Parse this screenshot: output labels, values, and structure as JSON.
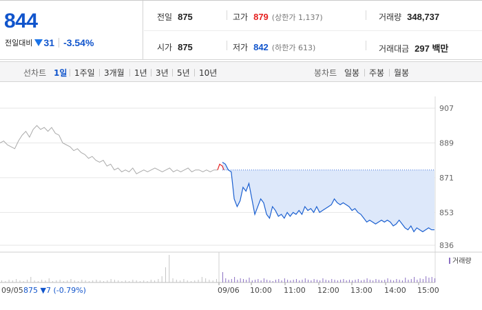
{
  "quote": {
    "price": "844",
    "change_label": "전일대비",
    "change_value": "31",
    "change_pct": "-3.54%",
    "change_direction_icon": "triangle-down-icon",
    "colors": {
      "down": "#1155cc",
      "up": "#e5201f"
    }
  },
  "stats": {
    "prev_close": {
      "label": "전일",
      "value": "875"
    },
    "high": {
      "label": "고가",
      "value": "879",
      "sub": "(상한가 1,137)"
    },
    "volume": {
      "label": "거래량",
      "value": "348,737"
    },
    "open": {
      "label": "시가",
      "value": "875"
    },
    "low": {
      "label": "저가",
      "value": "842",
      "sub": "(하한가 613)"
    },
    "trade_value": {
      "label": "거래대금",
      "value": "297 백만"
    }
  },
  "line_chart_bar": {
    "title": "선차트",
    "options": [
      "1일",
      "1주일",
      "3개월",
      "1년",
      "3년",
      "5년",
      "10년"
    ],
    "selected": "1일"
  },
  "candle_chart_bar": {
    "title": "봉차트",
    "options": [
      "일봉",
      "주봉",
      "월봉"
    ]
  },
  "chart_data": {
    "type": "line",
    "y_ticks": [
      "907",
      "889",
      "871",
      "853",
      "836"
    ],
    "ylim": [
      836,
      907
    ],
    "x_labels": [
      "09/06",
      "10:00",
      "11:00",
      "12:00",
      "13:00",
      "14:00",
      "15:00"
    ],
    "prev_day": {
      "date_label": "09/05",
      "close_text": "875 ▼7 (-0.79%)",
      "color": "#aaaaaa",
      "values": [
        889,
        890,
        888,
        887,
        886,
        890,
        893,
        895,
        892,
        896,
        898,
        896,
        897,
        895,
        897,
        894,
        893,
        889,
        888,
        887,
        885,
        886,
        884,
        883,
        881,
        882,
        880,
        879,
        880,
        877,
        878,
        875,
        876,
        874,
        875,
        874,
        876,
        873,
        874,
        875,
        874,
        875,
        876,
        875,
        874,
        875,
        876,
        874,
        875,
        874,
        875,
        876,
        874,
        875,
        875,
        874,
        875,
        874,
        875,
        875
      ]
    },
    "series": [
      {
        "values": [
          879,
          878,
          875,
          874,
          860,
          856,
          859,
          866,
          864,
          868,
          860,
          852,
          856,
          860,
          858,
          852,
          850,
          856,
          854,
          851,
          852,
          850,
          853,
          851,
          853,
          852,
          854,
          852,
          856,
          854,
          855,
          853,
          856,
          853,
          854,
          855,
          856,
          857,
          860,
          858,
          857,
          858,
          857,
          856,
          854,
          855,
          853,
          852,
          850,
          848,
          849,
          848,
          847,
          848,
          849,
          848,
          849,
          848,
          846,
          847,
          849,
          847,
          845,
          844,
          846,
          843,
          845,
          844,
          843,
          844,
          845,
          844,
          844
        ],
        "color": "#1a5fd0",
        "fill": "#dde8fa"
      }
    ],
    "reference_line": 875,
    "volume": {
      "legend": "거래량",
      "prev_day_values": [
        3,
        2,
        4,
        3,
        5,
        3,
        2,
        4,
        8,
        3,
        2,
        4,
        3,
        6,
        2,
        3,
        4,
        2,
        3,
        5,
        3,
        2,
        4,
        3,
        2,
        3,
        4,
        3,
        2,
        3,
        5,
        4,
        3,
        2,
        3,
        2,
        4,
        3,
        2,
        3,
        2,
        4,
        3,
        5,
        9,
        22,
        40,
        6,
        4,
        3,
        5,
        3,
        2,
        3,
        4,
        8,
        6,
        4,
        3,
        5
      ],
      "values": [
        15,
        6,
        4,
        5,
        8,
        4,
        6,
        5,
        4,
        7,
        3,
        4,
        5,
        3,
        6,
        4,
        3,
        2,
        4,
        5,
        3,
        6,
        4,
        3,
        4,
        5,
        3,
        4,
        6,
        4,
        3,
        5,
        4,
        3,
        6,
        4,
        3,
        5,
        4,
        3,
        4,
        5,
        3,
        4,
        3,
        4,
        5,
        3,
        4,
        6,
        4,
        3,
        5,
        4,
        3,
        4,
        6,
        4,
        3,
        5,
        4,
        3,
        7,
        4,
        5,
        8,
        4,
        6,
        5,
        9,
        7,
        8,
        6
      ]
    }
  }
}
